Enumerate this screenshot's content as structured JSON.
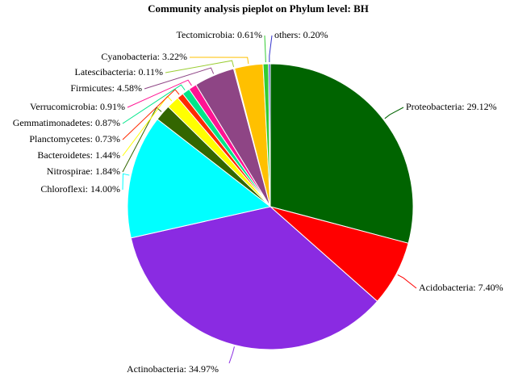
{
  "chart_data": {
    "type": "pie",
    "title": "Community analysis pieplot on Phylum level: BH",
    "categories": [
      "Proteobacteria",
      "Acidobacteria",
      "Actinobacteria",
      "Chloroflexi",
      "Nitrospirae",
      "Bacteroidetes",
      "Planctomycetes",
      "Gemmatimonadetes",
      "Verrucomicrobia",
      "Firmicutes",
      "Latescibacteria",
      "Cyanobacteria",
      "Tectomicrobia",
      "others"
    ],
    "values": [
      29.12,
      7.4,
      34.97,
      14.0,
      1.84,
      1.44,
      0.73,
      0.87,
      0.91,
      4.58,
      0.11,
      3.22,
      0.61,
      0.2
    ],
    "value_labels": [
      "Proteobacteria: 29.12%",
      "Acidobacteria: 7.40%",
      "Actinobacteria: 34.97%",
      "Chloroflexi: 14.00%",
      "Nitrospirae: 1.84%",
      "Bacteroidetes: 1.44%",
      "Planctomycetes: 0.73%",
      "Gemmatimonadetes: 0.87%",
      "Verrucomicrobia: 0.91%",
      "Firmicutes: 4.58%",
      "Latescibacteria: 0.11%",
      "Cyanobacteria: 3.22%",
      "Tectomicrobia: 0.61%",
      "others: 0.20%"
    ],
    "colors": [
      "#006400",
      "#ff0000",
      "#8a2be2",
      "#00ffff",
      "#336600",
      "#ffff00",
      "#ff2a00",
      "#00e68a",
      "#ff1493",
      "#8e4585",
      "#9acd32",
      "#ffc000",
      "#33cc33",
      "#3333cc"
    ]
  }
}
